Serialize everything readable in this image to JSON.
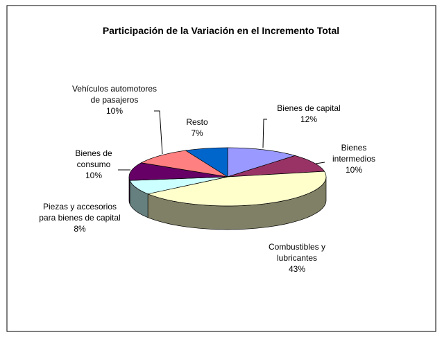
{
  "chart_data": {
    "type": "pie",
    "title": "Participación de la Variación en el Incremento Total",
    "categories": [
      "Bienes de capital",
      "Bienes intermedios",
      "Combustibles y lubricantes",
      "Piezas y accesorios para bienes de capital",
      "Bienes de consumo",
      "Vehículos automotores de pasajeros",
      "Resto"
    ],
    "values": [
      12,
      10,
      43,
      8,
      10,
      10,
      7
    ],
    "value_labels": [
      "12%",
      "10%",
      "43%",
      "8%",
      "10%",
      "10%",
      "7%"
    ],
    "colors": [
      "#9999ff",
      "#993366",
      "#ffffcc",
      "#ccffff",
      "#660066",
      "#ff8080",
      "#0066cc"
    ]
  }
}
